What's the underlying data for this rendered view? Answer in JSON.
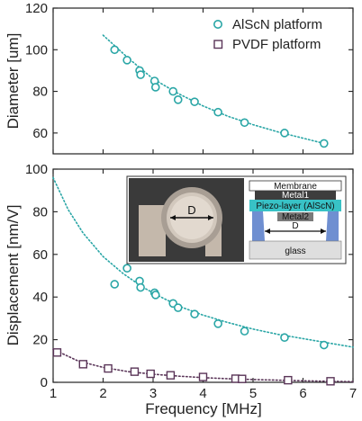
{
  "colors": {
    "aln": "#2aa6a6",
    "pvdf": "#5a3558",
    "axis": "#222222",
    "metal1": "#3d3d3d",
    "piezo": "#38c2c6",
    "metal2": "#7a7a7a",
    "glass": "#dedede",
    "side": "#6f8fd1"
  },
  "chart_data": [
    {
      "type": "scatter",
      "xlabel": "",
      "ylabel": "Diameter [um]",
      "xlim": [
        1,
        7
      ],
      "ylim": [
        50,
        120
      ],
      "yticks": [
        "60",
        "80",
        "100",
        "120"
      ],
      "legend": "top-right",
      "series": [
        {
          "name": "AlScN platform",
          "marker": "circle",
          "x": [
            2.23,
            2.48,
            2.73,
            2.75,
            3.03,
            3.05,
            3.4,
            3.5,
            3.83,
            4.3,
            4.83,
            5.63,
            6.42
          ],
          "y": [
            100,
            95,
            90,
            88,
            85,
            82,
            80,
            76,
            75,
            70,
            65,
            60,
            55
          ],
          "fit_x": [
            2.0,
            2.5,
            3.0,
            3.5,
            4.0,
            4.5,
            5.0,
            5.5,
            6.0,
            6.5
          ],
          "fit_y": [
            107,
            96,
            86,
            79,
            73,
            68,
            64,
            60.5,
            57.5,
            54.5
          ]
        },
        {
          "name": "PVDF platform",
          "marker": "square",
          "x": [],
          "y": []
        }
      ]
    },
    {
      "type": "scatter",
      "xlabel": "Frequency [MHz]",
      "ylabel": "Displacement [nm/V]",
      "xlim": [
        1,
        7
      ],
      "ylim": [
        0,
        100
      ],
      "xticks": [
        "1",
        "2",
        "3",
        "4",
        "5",
        "6",
        "7"
      ],
      "yticks": [
        "0",
        "20",
        "40",
        "60",
        "80",
        "100"
      ],
      "series": [
        {
          "name": "AlScN platform",
          "marker": "circle",
          "x": [
            2.23,
            2.48,
            2.73,
            2.75,
            3.03,
            3.05,
            3.4,
            3.5,
            3.83,
            4.3,
            4.83,
            5.63,
            6.42
          ],
          "y": [
            46,
            53.5,
            47.5,
            44.5,
            42,
            41,
            37,
            35,
            32,
            27.5,
            24,
            21,
            17.5
          ],
          "fit_x": [
            1.0,
            1.3,
            1.6,
            2.0,
            2.4,
            2.8,
            3.2,
            3.6,
            4.0,
            4.5,
            5.0,
            5.5,
            6.0,
            6.5,
            7.0
          ],
          "fit_y": [
            96,
            81,
            70,
            59,
            51,
            44.5,
            39.5,
            35,
            31.5,
            28,
            25,
            22.5,
            20.5,
            18.5,
            16.5
          ]
        },
        {
          "name": "PVDF platform",
          "marker": "square",
          "x": [
            1.08,
            1.6,
            2.1,
            2.63,
            2.95,
            3.35,
            4.0,
            4.65,
            4.78,
            5.7,
            6.55
          ],
          "y": [
            14,
            8.5,
            6.5,
            5,
            4,
            3.3,
            2.5,
            1.7,
            1.6,
            1.0,
            0.5
          ],
          "fit_x": [
            1.0,
            1.5,
            2.0,
            2.5,
            3.0,
            3.5,
            4.0,
            4.5,
            5.0,
            5.5,
            6.0,
            6.5,
            7.0
          ],
          "fit_y": [
            15.5,
            10,
            7,
            5,
            3.8,
            2.9,
            2.2,
            1.7,
            1.3,
            1.0,
            0.7,
            0.5,
            0.3
          ]
        }
      ],
      "inset": {
        "photo_label": "D",
        "layers": [
          "Membrane",
          "Metal1",
          "Piezo-layer (AlScN)",
          "Metal2"
        ],
        "dimension_label": "D",
        "substrate": "glass"
      }
    }
  ]
}
